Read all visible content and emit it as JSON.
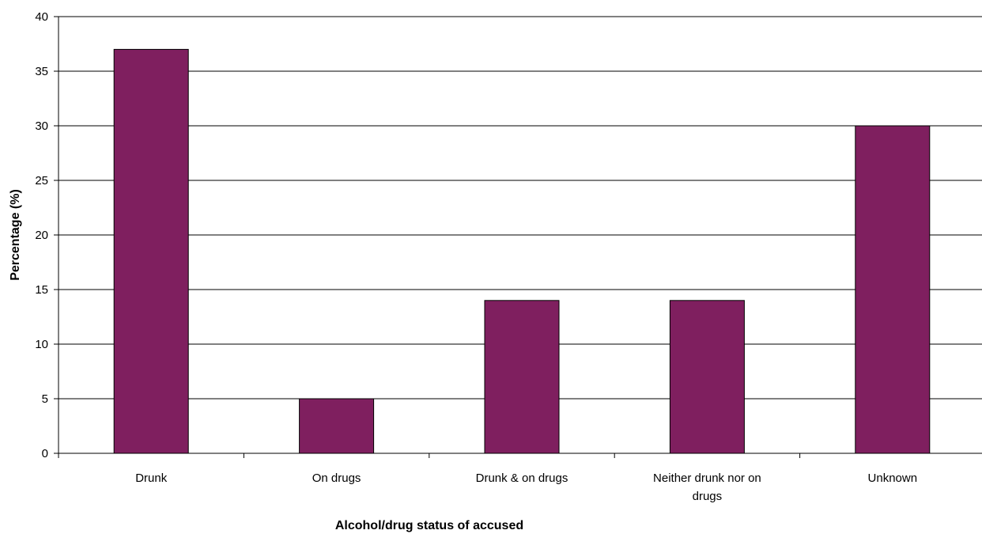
{
  "chart_data": {
    "type": "bar",
    "title": "",
    "xlabel": "Alcohol/drug status of accused",
    "ylabel": "Percentage (%)",
    "categories": [
      [
        "Drunk"
      ],
      [
        "On drugs"
      ],
      [
        "Drunk & on drugs"
      ],
      [
        "Neither drunk nor on",
        "drugs"
      ],
      [
        "Unknown"
      ]
    ],
    "values": [
      37,
      5,
      14,
      14,
      30
    ],
    "ylim": [
      0,
      40
    ],
    "yticks": [
      "0",
      "5",
      "10",
      "15",
      "20",
      "25",
      "30",
      "35",
      "40"
    ],
    "grid": true,
    "legend": "none",
    "colors": {
      "bar": "#7F1F5F",
      "bar_edge": "#000000",
      "grid": "#000000",
      "axis": "#000000"
    }
  }
}
